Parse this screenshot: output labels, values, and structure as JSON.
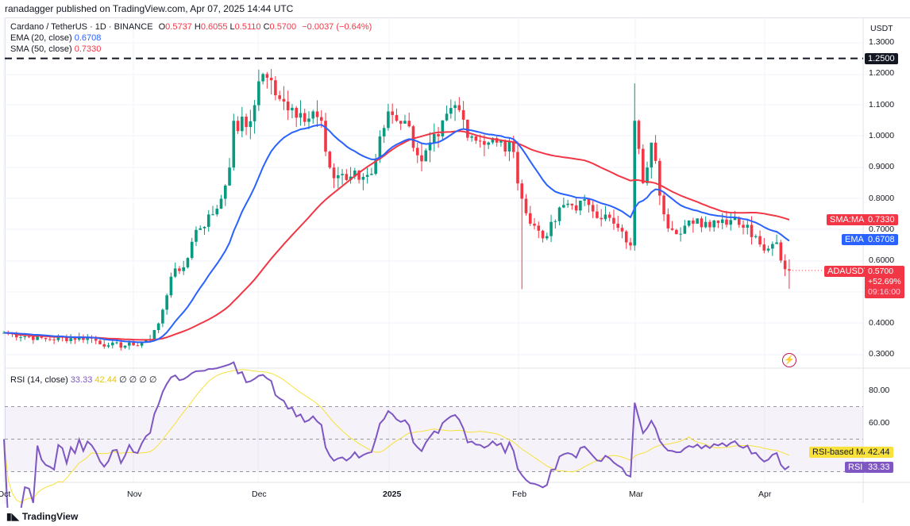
{
  "header": {
    "published": "ranadagger published on TradingView.com, Apr 07, 2025 14:44 UTC"
  },
  "legend": {
    "symbol": "Cardano / TetherUS · 1D · BINANCE",
    "o_label": "O",
    "o": "0.5737",
    "h_label": "H",
    "h": "0.6055",
    "l_label": "L",
    "l": "0.5110",
    "c_label": "C",
    "c": "0.5700",
    "change": "−0.0037 (−0.64%)",
    "ema_label": "EMA (20, close)",
    "ema": "0.6708",
    "sma_label": "SMA (50, close)",
    "sma": "0.7330",
    "rsi_label": "RSI (14, close)",
    "rsi": "33.33",
    "rsi_ma": "42.44",
    "rsi_extra": "∅ ∅ ∅ ∅"
  },
  "price_axis": {
    "currency": "USDT",
    "ticks": [
      "1.3000",
      "1.2000",
      "1.1000",
      "1.0000",
      "0.9000",
      "0.8000",
      "0.7000",
      "0.6000",
      "0.4000",
      "0.3000"
    ],
    "hline": "1.2500",
    "sma_tag": "SMA:MA",
    "sma_val": "0.7330",
    "ema_tag": "EMA",
    "ema_val": "0.6708",
    "sym_tag": "ADAUSDT",
    "last": "0.5700",
    "pct": "+52.69%",
    "countdown": "09:16:00"
  },
  "rsi_axis": {
    "ticks": [
      "80.00",
      "60.00"
    ],
    "ma_tag": "RSI-based MA",
    "ma_val": "42.44",
    "rsi_tag": "RSI",
    "rsi_val": "33.33"
  },
  "time_axis": [
    "Oct",
    "Nov",
    "Dec",
    "2025",
    "Feb",
    "Mar",
    "Apr"
  ],
  "footer": {
    "brand": "TradingView"
  },
  "colors": {
    "up": "#089981",
    "down": "#f23645",
    "ema": "#2962ff",
    "sma": "#f23645",
    "rsi": "#7e57c2",
    "rsi_ma": "#f7e13a"
  },
  "chart_data": {
    "type": "candlestick",
    "title": "Cardano / TetherUS 1D",
    "start": "Oct 1, 2024",
    "end": "Apr 7, 2025",
    "ylim": [
      0.28,
      1.34
    ],
    "horizontal_line": 1.25,
    "close_keypoints": [
      [
        0,
        0.37
      ],
      [
        10,
        0.35
      ],
      [
        20,
        0.355
      ],
      [
        25,
        0.33
      ],
      [
        31,
        0.33
      ],
      [
        35,
        0.35
      ],
      [
        37,
        0.4
      ],
      [
        40,
        0.55
      ],
      [
        43,
        0.58
      ],
      [
        46,
        0.7
      ],
      [
        50,
        0.75
      ],
      [
        52,
        0.8
      ],
      [
        54,
        0.9
      ],
      [
        55,
        1.05
      ],
      [
        58,
        1.03
      ],
      [
        60,
        1.1
      ],
      [
        62,
        1.2
      ],
      [
        64,
        1.18
      ],
      [
        66,
        1.12
      ],
      [
        70,
        1.06
      ],
      [
        74,
        1.08
      ],
      [
        76,
        1.05
      ],
      [
        78,
        0.9
      ],
      [
        82,
        0.86
      ],
      [
        88,
        0.88
      ],
      [
        92,
        1.08
      ],
      [
        96,
        1.05
      ],
      [
        100,
        0.92
      ],
      [
        104,
        1.0
      ],
      [
        108,
        1.1
      ],
      [
        112,
        1.0
      ],
      [
        118,
        0.98
      ],
      [
        122,
        0.95
      ],
      [
        124,
        0.8
      ],
      [
        126,
        0.72
      ],
      [
        130,
        0.68
      ],
      [
        134,
        0.78
      ],
      [
        140,
        0.78
      ],
      [
        146,
        0.72
      ],
      [
        149,
        0.66
      ],
      [
        150,
        0.65
      ],
      [
        151,
        1.05
      ],
      [
        152,
        0.96
      ],
      [
        153,
        0.85
      ],
      [
        155,
        0.98
      ],
      [
        158,
        0.75
      ],
      [
        160,
        0.7
      ],
      [
        165,
        0.72
      ],
      [
        170,
        0.73
      ],
      [
        175,
        0.74
      ],
      [
        180,
        0.68
      ],
      [
        183,
        0.64
      ],
      [
        185,
        0.66
      ],
      [
        187,
        0.574
      ],
      [
        188,
        0.57
      ]
    ],
    "last_candle": {
      "open": 0.5737,
      "high": 0.6055,
      "low": 0.511,
      "close": 0.57
    },
    "ema_period": 20,
    "sma_period": 50,
    "rsi_period": 14,
    "rsi_last": 33.33,
    "rsi_ma_last": 42.44,
    "rsi_levels": [
      70,
      50,
      30
    ]
  }
}
